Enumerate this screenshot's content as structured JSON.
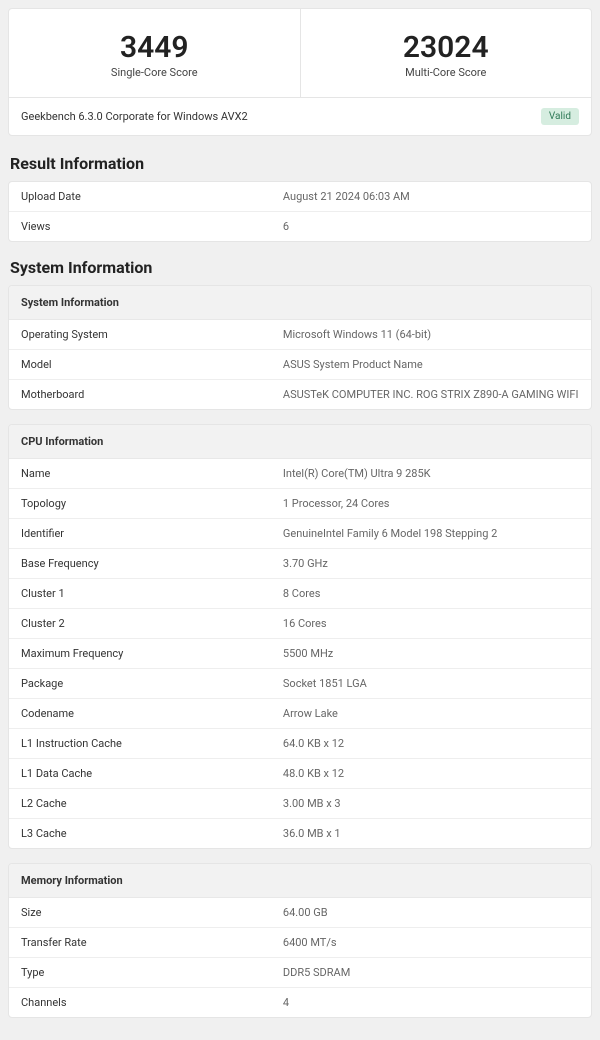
{
  "scores": {
    "single": {
      "value": "3449",
      "label": "Single-Core Score"
    },
    "multi": {
      "value": "23024",
      "label": "Multi-Core Score"
    }
  },
  "version_line": "Geekbench 6.3.0 Corporate for Windows AVX2",
  "valid_label": "Valid",
  "result_info": {
    "title": "Result Information",
    "rows": [
      {
        "k": "Upload Date",
        "v": "August 21 2024 06:03 AM"
      },
      {
        "k": "Views",
        "v": "6"
      }
    ]
  },
  "system_info": {
    "title": "System Information",
    "system_table": {
      "header": "System Information",
      "rows": [
        {
          "k": "Operating System",
          "v": "Microsoft Windows 11 (64-bit)"
        },
        {
          "k": "Model",
          "v": "ASUS System Product Name"
        },
        {
          "k": "Motherboard",
          "v": "ASUSTeK COMPUTER INC. ROG STRIX Z890-A GAMING WIFI"
        }
      ]
    },
    "cpu_table": {
      "header": "CPU Information",
      "rows": [
        {
          "k": "Name",
          "v": "Intel(R) Core(TM) Ultra 9 285K"
        },
        {
          "k": "Topology",
          "v": "1 Processor, 24 Cores"
        },
        {
          "k": "Identifier",
          "v": "GenuineIntel Family 6 Model 198 Stepping 2"
        },
        {
          "k": "Base Frequency",
          "v": "3.70 GHz"
        },
        {
          "k": "Cluster 1",
          "v": "8 Cores"
        },
        {
          "k": "Cluster 2",
          "v": "16 Cores"
        },
        {
          "k": "Maximum Frequency",
          "v": "5500 MHz"
        },
        {
          "k": "Package",
          "v": "Socket 1851 LGA"
        },
        {
          "k": "Codename",
          "v": "Arrow Lake"
        },
        {
          "k": "L1 Instruction Cache",
          "v": "64.0 KB x 12"
        },
        {
          "k": "L1 Data Cache",
          "v": "48.0 KB x 12"
        },
        {
          "k": "L2 Cache",
          "v": "3.00 MB x 3"
        },
        {
          "k": "L3 Cache",
          "v": "36.0 MB x 1"
        }
      ]
    },
    "memory_table": {
      "header": "Memory Information",
      "rows": [
        {
          "k": "Size",
          "v": "64.00 GB"
        },
        {
          "k": "Transfer Rate",
          "v": "6400 MT/s"
        },
        {
          "k": "Type",
          "v": "DDR5 SDRAM"
        },
        {
          "k": "Channels",
          "v": "4"
        }
      ]
    }
  },
  "colors": {
    "page_bg": "#f0f0f0",
    "card_bg": "#ffffff",
    "border": "#e5e5e5",
    "header_bg": "#f2f2f2",
    "text": "#333333",
    "muted": "#666666",
    "badge_bg": "#d6ede0",
    "badge_fg": "#2f7a57"
  }
}
